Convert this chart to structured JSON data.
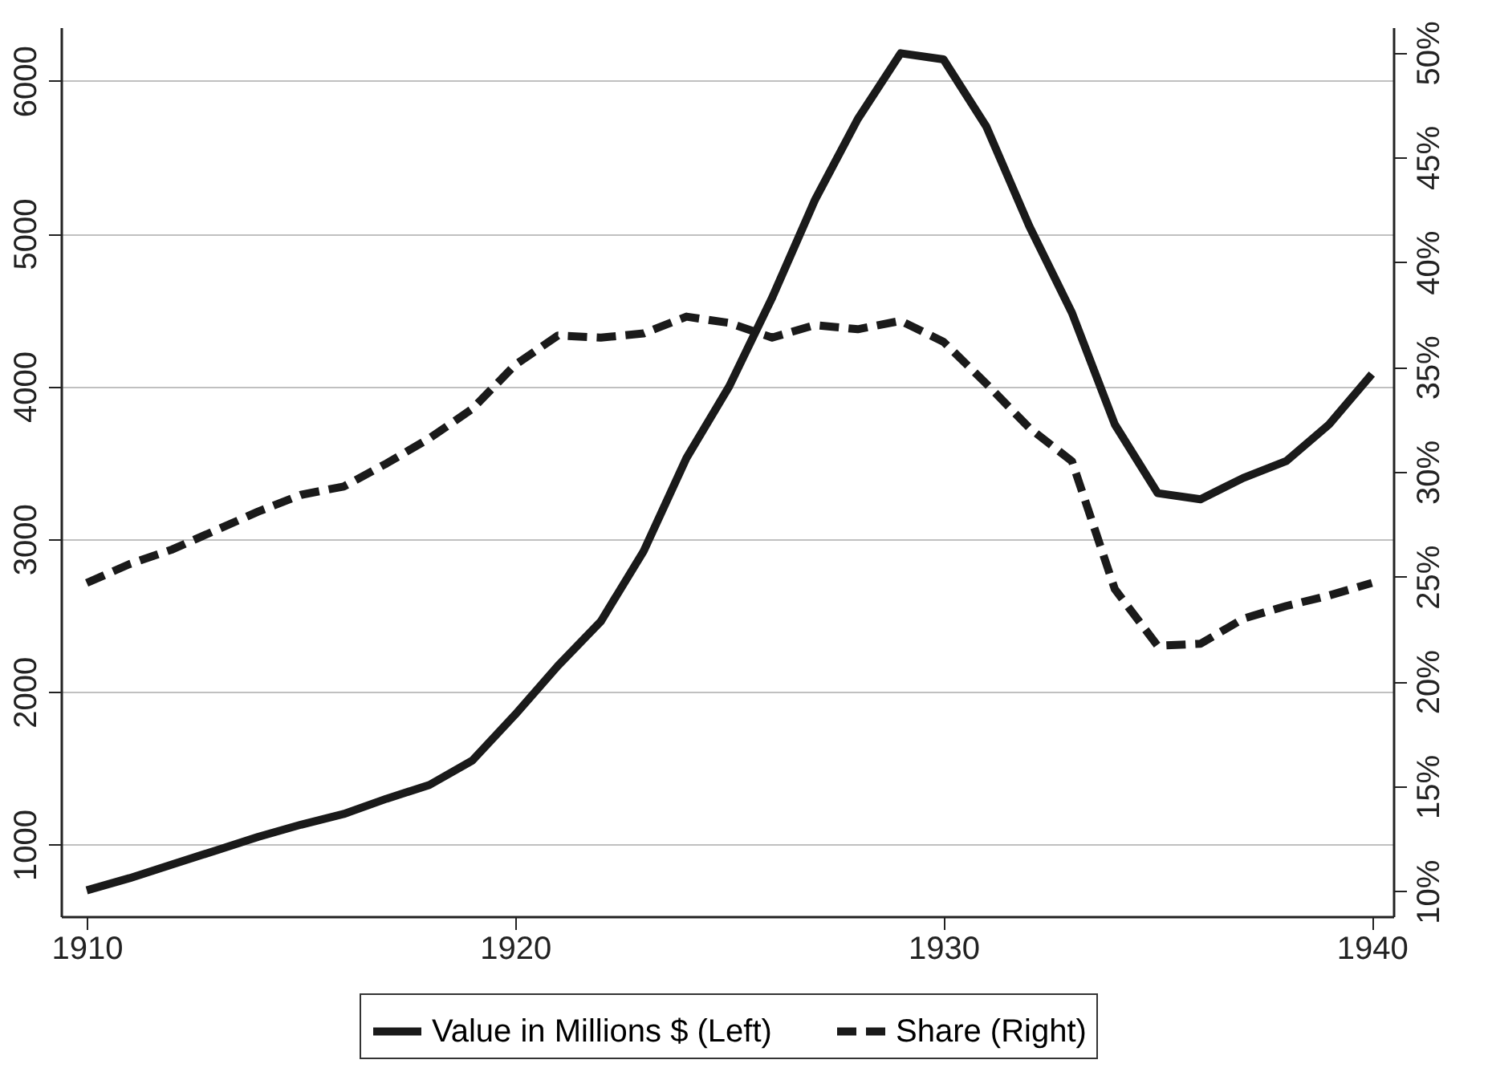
{
  "chart_data": {
    "type": "line",
    "x": [
      1910,
      1911,
      1912,
      1913,
      1914,
      1915,
      1916,
      1917,
      1918,
      1919,
      1920,
      1921,
      1922,
      1923,
      1924,
      1925,
      1926,
      1927,
      1928,
      1929,
      1930,
      1931,
      1932,
      1933,
      1934,
      1935,
      1936,
      1937,
      1938,
      1939,
      1940
    ],
    "series": [
      {
        "name": "Value in Millions $ (Left)",
        "color": "#1a1a1a",
        "line_style": "solid",
        "values": [
          700,
          780,
          870,
          960,
          1050,
          1130,
          1200,
          1300,
          1390,
          1550,
          1850,
          2170,
          2460,
          2920,
          3530,
          4000,
          4580,
          5220,
          5750,
          6180,
          6140,
          5700,
          5050,
          4480,
          3750,
          3300,
          3260,
          3400,
          3510,
          3750,
          4080
        ]
      },
      {
        "name": "Share (Right)",
        "color": "#1a1a1a",
        "line_style": "dashed",
        "axis": "y2",
        "values": [
          24.7,
          25.6,
          26.3,
          27.2,
          28.1,
          28.9,
          29.3,
          30.4,
          31.6,
          33.0,
          35.1,
          36.5,
          36.4,
          36.6,
          37.4,
          37.1,
          36.4,
          37.0,
          36.8,
          37.2,
          36.2,
          34.2,
          32.1,
          30.5,
          24.4,
          21.7,
          21.8,
          23.0,
          23.6,
          24.1,
          24.7
        ]
      }
    ],
    "xlim": [
      1909.4,
      1940.5
    ],
    "xticks": [
      1910,
      1920,
      1930,
      1940
    ],
    "ylim": [
      530,
      6350
    ],
    "yticks": [
      1000,
      2000,
      3000,
      4000,
      5000,
      6000
    ],
    "y2lim": [
      8.8,
      51.2
    ],
    "y2ticks": [
      {
        "value": 10,
        "label": "10%"
      },
      {
        "value": 15,
        "label": "15%"
      },
      {
        "value": 20,
        "label": "20%"
      },
      {
        "value": 25,
        "label": "25%"
      },
      {
        "value": 30,
        "label": "30%"
      },
      {
        "value": 35,
        "label": "35%"
      },
      {
        "value": 40,
        "label": "40%"
      },
      {
        "value": 45,
        "label": "45%"
      },
      {
        "value": 50,
        "label": "50%"
      }
    ],
    "grid": "y",
    "legend": "bottom"
  }
}
